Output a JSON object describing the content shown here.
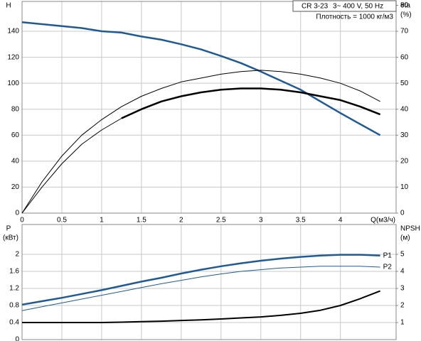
{
  "chart_data": [
    {
      "type": "line",
      "ylabel": "H",
      "y2label": "eta",
      "y2unit": "(%)",
      "xlabel": "Q(м3/ч)",
      "annotations": [
        "CR 3-23",
        "3~ 400 V, 50 Hz",
        "Плотность = 1000 кг/м3"
      ],
      "x": [
        0,
        0.25,
        0.5,
        0.75,
        1,
        1.25,
        1.5,
        1.75,
        2,
        2.25,
        2.5,
        2.75,
        3,
        3.25,
        3.5,
        3.75,
        4,
        4.25,
        4.5
      ],
      "xlim": [
        0,
        4.7
      ],
      "xticks": [
        0,
        0.5,
        1,
        1.5,
        2,
        2.5,
        3,
        3.5,
        4
      ],
      "ylim": [
        0,
        163
      ],
      "yticks": [
        0,
        20,
        40,
        60,
        80,
        100,
        120,
        140
      ],
      "y2lim": [
        0,
        81.5
      ],
      "y2ticks": [
        0,
        10,
        20,
        30,
        40,
        50,
        60,
        70,
        80
      ],
      "grid": true,
      "series": [
        {
          "color": "#1f5a96",
          "linewidth": 2.5,
          "values": [
            147,
            145.5,
            144,
            142.5,
            140,
            139,
            136,
            133.5,
            130,
            126,
            121,
            115.5,
            109,
            102,
            95,
            86,
            77,
            68.5,
            60
          ]
        },
        {
          "color": "#000000",
          "linewidth": 1,
          "axis": "y2",
          "values": [
            0,
            12,
            22,
            30,
            36,
            41,
            45,
            48,
            50.5,
            52,
            53.5,
            54.5,
            55,
            54.5,
            53.5,
            52,
            50,
            47,
            43
          ]
        },
        {
          "color": "#000000",
          "linewidth": 1,
          "axis": "y2",
          "values": [
            0,
            10,
            19,
            26.5,
            32,
            36.5,
            40,
            43,
            45,
            46.5,
            47.5,
            48,
            48,
            47.5,
            46.5,
            45,
            43.5,
            41,
            38
          ]
        },
        {
          "color": "#000000",
          "linewidth": 2.5,
          "axis": "y2",
          "values": [
            null,
            null,
            null,
            null,
            null,
            36.5,
            40,
            43,
            45,
            46.5,
            47.5,
            48,
            48,
            47.5,
            46.5,
            45,
            43.5,
            41,
            38
          ]
        }
      ]
    },
    {
      "type": "line",
      "ylabel": "P",
      "yunit": "(кВт)",
      "y2label": "NPSH",
      "y2unit": "(м)",
      "x": [
        0,
        0.25,
        0.5,
        0.75,
        1,
        1.25,
        1.5,
        1.75,
        2,
        2.25,
        2.5,
        2.75,
        3,
        3.25,
        3.5,
        3.75,
        4,
        4.25,
        4.5
      ],
      "xlim": [
        0,
        4.7
      ],
      "ylim": [
        0,
        2.7
      ],
      "yticks": [
        0,
        0.4,
        0.8,
        1.2,
        1.6,
        2
      ],
      "y2lim": [
        0,
        6.75
      ],
      "y2ticks": [
        1,
        2,
        3,
        4,
        5
      ],
      "grid": true,
      "series": [
        {
          "name": "P1",
          "color": "#1f5a96",
          "linewidth": 2.5,
          "values": [
            0.82,
            0.9,
            0.98,
            1.07,
            1.16,
            1.26,
            1.36,
            1.45,
            1.55,
            1.64,
            1.72,
            1.79,
            1.85,
            1.9,
            1.94,
            1.97,
            1.99,
            1.99,
            1.97
          ]
        },
        {
          "name": "P2",
          "color": "#1f5a96",
          "linewidth": 1,
          "values": [
            0.68,
            0.77,
            0.86,
            0.95,
            1.04,
            1.13,
            1.22,
            1.31,
            1.39,
            1.47,
            1.54,
            1.6,
            1.64,
            1.68,
            1.7,
            1.72,
            1.72,
            1.72,
            1.7
          ]
        },
        {
          "color": "#000000",
          "linewidth": 2,
          "axis": "y2",
          "values": [
            1,
            1,
            1,
            1,
            1,
            1.02,
            1.05,
            1.08,
            1.12,
            1.16,
            1.21,
            1.27,
            1.33,
            1.42,
            1.54,
            1.72,
            2.0,
            2.4,
            2.85
          ]
        }
      ]
    }
  ]
}
